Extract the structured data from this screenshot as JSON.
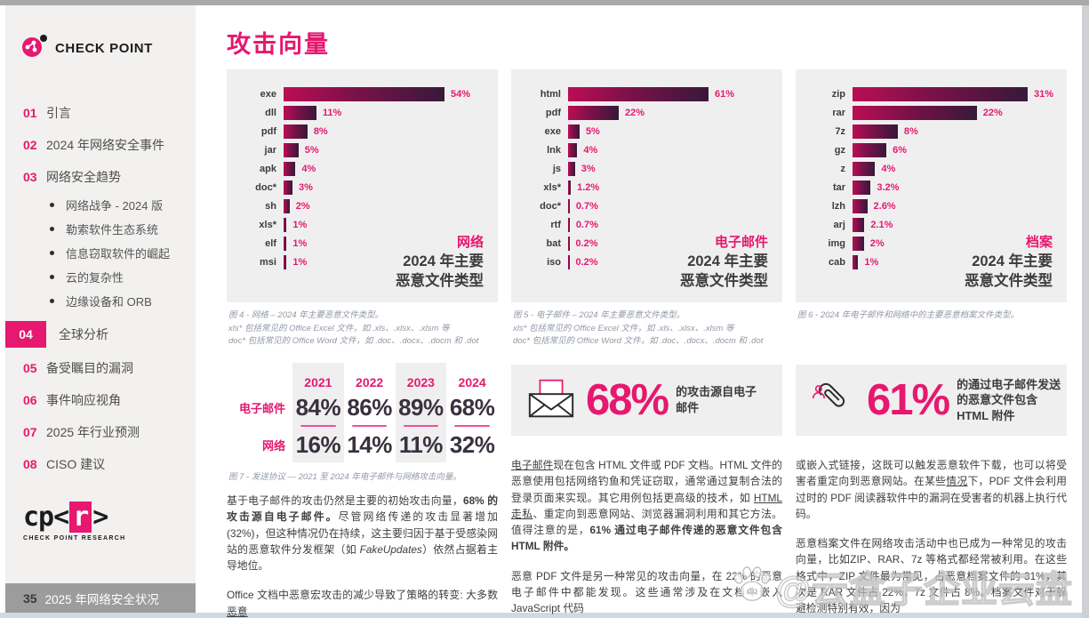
{
  "title": "攻击向量",
  "colors": {
    "accent_pink": "#e6186f",
    "bar_gradient_start": "#bb0e54",
    "bar_gradient_end": "#371939",
    "panel_bg": "#f0eff0",
    "footer_bar": "#9c9c9c",
    "table_divider_pink": "#f0509a"
  },
  "sidebar": {
    "brand": "CHECK POINT",
    "items": [
      {
        "num": "01",
        "label": "引言",
        "active": false,
        "children": []
      },
      {
        "num": "02",
        "label": "2024 年网络安全事件",
        "active": false,
        "children": []
      },
      {
        "num": "03",
        "label": "网络安全趋势",
        "active": false,
        "children": [
          "网络战争 - 2024 版",
          "勒索软件生态系统",
          "信息窃取软件的崛起",
          "云的复杂性",
          "边缘设备和 ORB"
        ]
      },
      {
        "num": "04",
        "label": "全球分析",
        "active": true,
        "children": []
      },
      {
        "num": "05",
        "label": "备受瞩目的漏洞",
        "active": false,
        "children": []
      },
      {
        "num": "06",
        "label": "事件响应视角",
        "active": false,
        "children": []
      },
      {
        "num": "07",
        "label": "2025 年行业预测",
        "active": false,
        "children": []
      },
      {
        "num": "08",
        "label": "CISO 建议",
        "active": false,
        "children": []
      }
    ],
    "research_logo": {
      "prefix": "cp<",
      "r": "r",
      "suffix": ">",
      "subtext": "CHECK POINT RESEARCH"
    },
    "footer": {
      "page_number": "35",
      "text": "2025 年网络安全状况"
    }
  },
  "chart_data": [
    {
      "type": "bar",
      "orientation": "horizontal",
      "unit": "%",
      "title": "网络 2024 年主要恶意文件类型",
      "categories": [
        "exe",
        "dll",
        "pdf",
        "jar",
        "apk",
        "doc*",
        "sh",
        "xls*",
        "elf",
        "msi"
      ],
      "values": [
        54,
        11,
        8,
        5,
        4,
        3,
        2,
        1,
        1,
        1
      ]
    },
    {
      "type": "bar",
      "orientation": "horizontal",
      "unit": "%",
      "title": "电子邮件 2024 年主要恶意文件类型",
      "categories": [
        "html",
        "pdf",
        "exe",
        "lnk",
        "js",
        "xls*",
        "doc*",
        "rtf",
        "bat",
        "iso"
      ],
      "values": [
        61,
        22,
        5,
        4,
        3,
        1.2,
        0.7,
        0.7,
        0.2,
        0.2
      ]
    },
    {
      "type": "bar",
      "orientation": "horizontal",
      "unit": "%",
      "title": "档案 2024 年主要恶意文件类型",
      "categories": [
        "zip",
        "rar",
        "7z",
        "gz",
        "z",
        "tar",
        "lzh",
        "arj",
        "img",
        "cab"
      ],
      "values": [
        31,
        22,
        8,
        6,
        4,
        3.2,
        2.6,
        2.1,
        2,
        1
      ]
    },
    {
      "type": "table",
      "title": "发送协议 — 2021 至 2024 年电子邮件与网络攻击向量",
      "columns": [
        "2021",
        "2022",
        "2023",
        "2024"
      ],
      "rows": [
        {
          "label": "电子邮件",
          "values": [
            "84%",
            "86%",
            "89%",
            "68%"
          ]
        },
        {
          "label": "网络",
          "values": [
            "16%",
            "14%",
            "11%",
            "32%"
          ]
        }
      ]
    }
  ],
  "charts": [
    {
      "corner_label": "网络",
      "corner_line2": "2024 年主要",
      "corner_line3": "恶意文件类型",
      "caption": [
        "图 4 - 网络 – 2024 年主要恶意文件类型。",
        "xls* 包括常见的 Office Excel 文件，如 .xls、.xlsx、.xlsm 等",
        "doc* 包括常见的 Office Word 文件，如 .doc、.docx、.docm 和 .dot"
      ]
    },
    {
      "corner_label": "电子邮件",
      "corner_line2": "2024 年主要",
      "corner_line3": "恶意文件类型",
      "caption": [
        "图 5 - 电子邮件 – 2024 年主要恶意文件类型。",
        "xls* 包括常见的 Office Excel 文件，如 .xls、.xlsx、.xlsm 等",
        "doc* 包括常见的 Office Word 文件，如 .doc、.docx、.docm 和 .dot"
      ]
    },
    {
      "corner_label": "档案",
      "corner_line2": "2024 年主要",
      "corner_line3": "恶意文件类型",
      "caption": [
        "图 6 - 2024 年电子邮件和网络中的主要恶意档案文件类型。"
      ]
    }
  ],
  "table_caption": "图 7 - 发送协议 — 2021 至 2024 年电子邮件与网络攻击向量。",
  "stats": [
    {
      "icon": "envelope-icon",
      "value": "68%",
      "desc": "的攻击源自电子邮件"
    },
    {
      "icon": "paperclip-icon",
      "value": "61%",
      "desc": "的通过电子邮件发送的恶意文件包含 HTML 附件"
    }
  ],
  "paragraphs": {
    "col1": [
      {
        "segments": [
          {
            "t": "基于电子邮件的攻击仍然是主要的初始攻击向量，"
          },
          {
            "t": "68% 的攻击源自电子邮件。",
            "b": true
          },
          {
            "t": "尽管网络传递的攻击显著增加 (32%)，但这种情况仍在持续，这主要归因于基于受感染网站的恶意软件分发框架（如 "
          },
          {
            "t": "FakeUpdates",
            "i": true
          },
          {
            "t": "）依然占据着主导地位。"
          }
        ]
      },
      {
        "segments": [
          {
            "t": "Office 文档中恶意宏攻击的减少导致了策略的转变: 大多数"
          },
          {
            "t": "恶意",
            "u": true
          }
        ]
      }
    ],
    "col2": [
      {
        "segments": [
          {
            "t": "电子邮件",
            "u": true
          },
          {
            "t": "现在包含 HTML 文件或 PDF 文档。HTML 文件的恶意使用包括网络钓鱼和凭证窃取，通常通过复制合法的登录页面来实现。其它用例包括更高级的技术，如 "
          },
          {
            "t": "HTML 走私",
            "u": true
          },
          {
            "t": "、重定向到恶意网站、浏览器漏洞利用和其它方法。值得注意的是，"
          },
          {
            "t": "61% 通过电子邮件传递的恶意文件包含 HTML 附件。",
            "b": true
          }
        ]
      },
      {
        "segments": [
          {
            "t": "恶意 PDF 文件是另一种常见的攻击向量，在 22% 的恶意电子邮件中都能发现。这些通常涉及在文档中嵌入 JavaScript 代码"
          }
        ]
      }
    ],
    "col3": [
      {
        "segments": [
          {
            "t": "或嵌入式链接，这既可以触发恶意软件下载，也可以将受害者重定向到恶意网站。在某些"
          },
          {
            "t": "情况",
            "u": true
          },
          {
            "t": "下，PDF 文件会利用过时的 PDF 阅读器软件中的漏洞在受害者的机器上执行代码。"
          }
        ]
      },
      {
        "segments": [
          {
            "t": "恶意档案文件在网络攻击活动中也已成为一种常见的攻击向量，比如ZIP、RAR、7z 等格式都经常被利用。在这些格式中，ZIP 文件最为常见，占恶意档案文件的 31%，其次是 RAR 文件占 22%，7z 文件占 8%。档案文件对于躲避检测特别有效，因为"
          }
        ]
      }
    ]
  },
  "watermark": {
    "text": "@云盒子企业云盘",
    "icon": "baidu-paw-icon"
  }
}
